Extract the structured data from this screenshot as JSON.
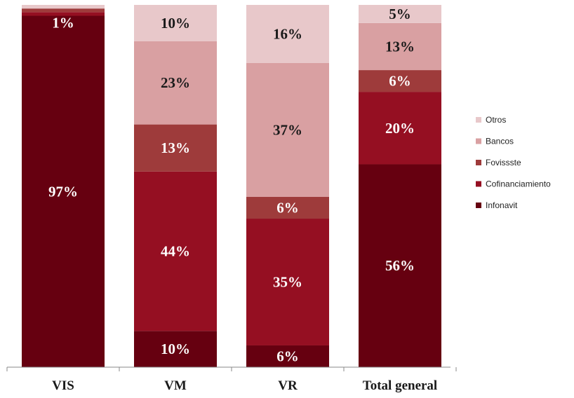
{
  "chart_data": {
    "type": "bar",
    "stacked": true,
    "normalized": true,
    "categories": [
      "VIS",
      "VM",
      "VR",
      "Total general"
    ],
    "series": [
      {
        "name": "Infonavit",
        "color": "#660010",
        "values": [
          97,
          10,
          6,
          56
        ],
        "labels": [
          "97%",
          "10%",
          "6%",
          "56%"
        ]
      },
      {
        "name": "Cofinanciamiento",
        "color": "#950f22",
        "values": [
          1,
          44,
          35,
          20
        ],
        "labels": [
          "1%",
          "44%",
          "35%",
          "20%"
        ]
      },
      {
        "name": "Fovissste",
        "color": "#9e3b3b",
        "values": [
          1,
          13,
          6,
          6
        ],
        "labels": [
          "",
          "13%",
          "6%",
          "6%"
        ]
      },
      {
        "name": "Bancos",
        "color": "#d9a0a2",
        "values": [
          0,
          23,
          37,
          13
        ],
        "labels": [
          "",
          "23%",
          "37%",
          "13%"
        ]
      },
      {
        "name": "Otros",
        "color": "#e8c8ca",
        "values": [
          1,
          10,
          16,
          5
        ],
        "labels": [
          "",
          "10%",
          "16%",
          "5%"
        ]
      }
    ],
    "legend_position": "right",
    "ylim": [
      0,
      100
    ],
    "grid": false
  }
}
